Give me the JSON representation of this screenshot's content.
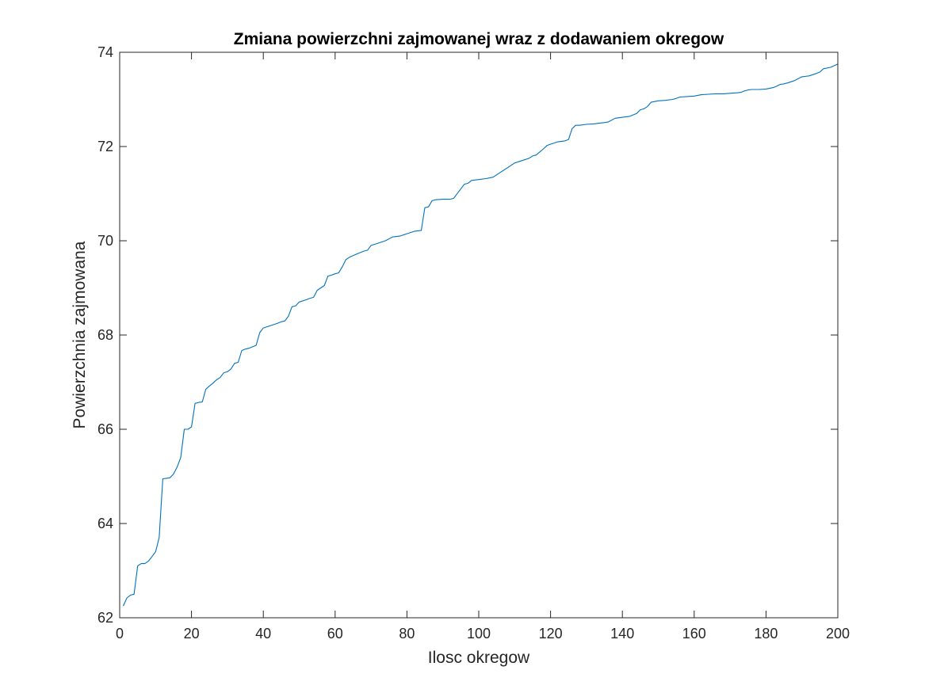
{
  "chart_data": {
    "type": "line",
    "title": "Zmiana powierzchni zajmowanej wraz z dodawaniem okregow",
    "xlabel": "Ilosc okregow",
    "ylabel": "Powierzchnia zajmowana",
    "xlim": [
      0,
      200
    ],
    "ylim": [
      62,
      74
    ],
    "xticks": [
      0,
      20,
      40,
      60,
      80,
      100,
      120,
      140,
      160,
      180,
      200
    ],
    "yticks": [
      62,
      64,
      66,
      68,
      70,
      72,
      74
    ],
    "grid": false,
    "box": true,
    "line_color": "#0072BD",
    "series": [
      {
        "x": [
          1,
          2,
          3,
          4,
          5,
          6,
          7,
          8,
          9,
          10,
          11,
          12,
          13,
          14,
          15,
          16,
          17,
          18,
          19,
          20,
          21,
          22,
          23,
          24,
          25,
          26,
          27,
          28,
          29,
          30,
          31,
          32,
          33,
          34,
          35,
          36,
          37,
          38,
          39,
          40,
          42,
          44,
          45,
          46,
          47,
          48,
          49,
          50,
          52,
          53,
          54,
          55,
          56,
          57,
          58,
          59,
          60,
          61,
          62,
          63,
          64,
          66,
          68,
          69,
          70,
          72,
          74,
          76,
          78,
          80,
          82,
          84,
          85,
          86,
          87,
          88,
          90,
          92,
          93,
          95,
          96,
          97,
          98,
          100,
          102,
          104,
          106,
          108,
          110,
          112,
          114,
          115,
          116,
          118,
          119,
          120,
          122,
          124,
          125,
          126,
          127,
          128,
          130,
          132,
          134,
          136,
          138,
          140,
          142,
          144,
          145,
          146,
          147,
          148,
          150,
          152,
          154,
          155,
          156,
          158,
          160,
          162,
          164,
          166,
          168,
          170,
          172,
          173,
          174,
          175,
          176,
          178,
          180,
          182,
          183,
          184,
          185,
          186,
          188,
          190,
          192,
          194,
          195,
          196,
          198,
          200
        ],
        "y": [
          62.25,
          62.42,
          62.48,
          62.5,
          63.1,
          63.15,
          63.15,
          63.2,
          63.3,
          63.4,
          63.7,
          64.95,
          64.96,
          64.97,
          65.05,
          65.2,
          65.4,
          66.0,
          66.0,
          66.05,
          66.55,
          66.57,
          66.58,
          66.85,
          66.92,
          66.98,
          67.05,
          67.1,
          67.2,
          67.22,
          67.28,
          67.4,
          67.42,
          67.67,
          67.7,
          67.72,
          67.75,
          67.78,
          68.05,
          68.15,
          68.2,
          68.25,
          68.28,
          68.3,
          68.4,
          68.6,
          68.62,
          68.7,
          68.75,
          68.78,
          68.8,
          68.95,
          69.0,
          69.05,
          69.25,
          69.27,
          69.3,
          69.32,
          69.45,
          69.6,
          69.65,
          69.72,
          69.78,
          69.8,
          69.9,
          69.95,
          70.0,
          70.08,
          70.1,
          70.15,
          70.2,
          70.22,
          70.7,
          70.72,
          70.85,
          70.87,
          70.88,
          70.88,
          70.9,
          71.1,
          71.2,
          71.22,
          71.28,
          71.3,
          71.32,
          71.35,
          71.45,
          71.55,
          71.65,
          71.7,
          71.75,
          71.8,
          71.82,
          71.95,
          72.02,
          72.05,
          72.1,
          72.12,
          72.15,
          72.38,
          72.45,
          72.45,
          72.47,
          72.48,
          72.5,
          72.52,
          72.6,
          72.62,
          72.64,
          72.7,
          72.78,
          72.8,
          72.85,
          72.94,
          72.97,
          72.98,
          73.0,
          73.02,
          73.05,
          73.06,
          73.07,
          73.1,
          73.11,
          73.12,
          73.12,
          73.13,
          73.14,
          73.15,
          73.18,
          73.2,
          73.21,
          73.21,
          73.22,
          73.25,
          73.28,
          73.32,
          73.33,
          73.35,
          73.4,
          73.48,
          73.5,
          73.55,
          73.58,
          73.65,
          73.68,
          73.75
        ]
      }
    ]
  }
}
